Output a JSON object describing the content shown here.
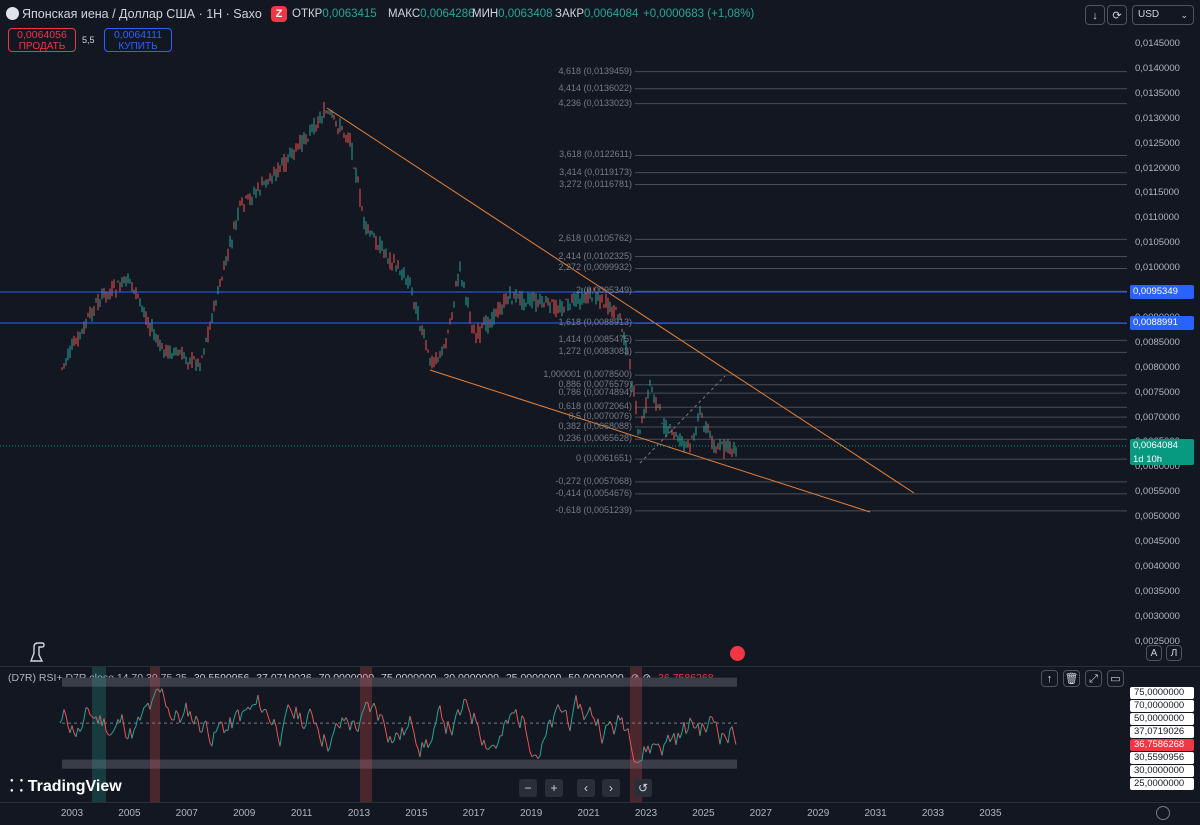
{
  "header": {
    "title": "Японская иена / Доллар США · 1Н · Saxo",
    "close_pill": "Z",
    "ohlc": [
      {
        "label": "ОТКР",
        "value": "0,0063415"
      },
      {
        "label": "МАКС",
        "value": "0,0064286"
      },
      {
        "label": "МИН",
        "value": "0,0063408"
      },
      {
        "label": "ЗАКР",
        "value": "0,0064084"
      }
    ],
    "change": "+0,0000683 (+1,08%)",
    "currency": "USD"
  },
  "trade": {
    "sell_price": "0,0064056",
    "sell_label": "ПРОДАТЬ",
    "spread": "5,5",
    "buy_price": "0,0064111",
    "buy_label": "КУПИТЬ"
  },
  "price_axis": {
    "ticks": [
      "0,0145000",
      "0,0140000",
      "0,0135000",
      "0,0130000",
      "0,0125000",
      "0,0120000",
      "0,0115000",
      "0,0110000",
      "0,0105000",
      "0,0100000",
      "0,0095000",
      "0,0090000",
      "0,0085000",
      "0,0080000",
      "0,0075000",
      "0,0070000",
      "0,0065000",
      "0,0060000",
      "0,0055000",
      "0,0050000",
      "0,0045000",
      "0,0040000",
      "0,0035000",
      "0,0030000",
      "0,0025000"
    ],
    "labels": [
      {
        "text": "0,0095349",
        "color": "#2962ff"
      },
      {
        "text": "0,0088991",
        "color": "#2962ff"
      },
      {
        "text": "0,0064084",
        "sub": "1d 10h",
        "color": "#089981"
      }
    ]
  },
  "fib_levels": [
    "4,618 (0,0139459)",
    "4,414 (0,0136022)",
    "4,236 (0,0133023)",
    "3,618 (0,0122611)",
    "3,414 (0,0119173)",
    "3,272 (0,0116781)",
    "2,618 (0,0105762)",
    "2,414 (0,0102325)",
    "2,272 (0,0099932)",
    "2 (0,0095349)",
    "1,618 (0,0088913)",
    "1,414 (0,0085475)",
    "1,272 (0,0083083)",
    "1,000001 (0,0078500)",
    "0,886 (0,0076579)",
    "0,786 (0,0074894)",
    "0,618 (0,0072064)",
    "0,5 (0,0070076)",
    "0,382 (0,0068088)",
    "0,236 (0,0065628)",
    "0 (0,0061651)",
    "-0,272 (0,0057068)",
    "-0,414 (0,0054676)",
    "-0,618 (0,0051239)"
  ],
  "rsi": {
    "title": "(D7R) RSI+ D7R close 14 70 30 75 25",
    "values": [
      "30,5590956",
      "37,0719026",
      "70,0000000",
      "75,0000000",
      "30,0000000",
      "25,0000000",
      "50,0000000"
    ],
    "symbols": "⊘ ⊘",
    "last": "36,7586268",
    "axis_labels": [
      {
        "text": "75,0000000",
        "value": 75
      },
      {
        "text": "70,0000000",
        "value": 70
      },
      {
        "text": "50,0000000",
        "value": 50
      },
      {
        "text": "37,0719026",
        "value": 37.07
      },
      {
        "text": "36,7586268",
        "value": 36.76,
        "color": "#f23645"
      },
      {
        "text": "30,5590956",
        "value": 30.56
      },
      {
        "text": "30,0000000",
        "value": 30
      },
      {
        "text": "25,0000000",
        "value": 25
      }
    ]
  },
  "time_axis": [
    "2003",
    "2005",
    "2007",
    "2009",
    "2011",
    "2013",
    "2015",
    "2017",
    "2019",
    "2021",
    "2023",
    "2025",
    "2027",
    "2029",
    "2031",
    "2033",
    "2035"
  ],
  "brand": "TradingView",
  "scale_buttons": {
    "auto": "A",
    "log": "Л"
  }
}
